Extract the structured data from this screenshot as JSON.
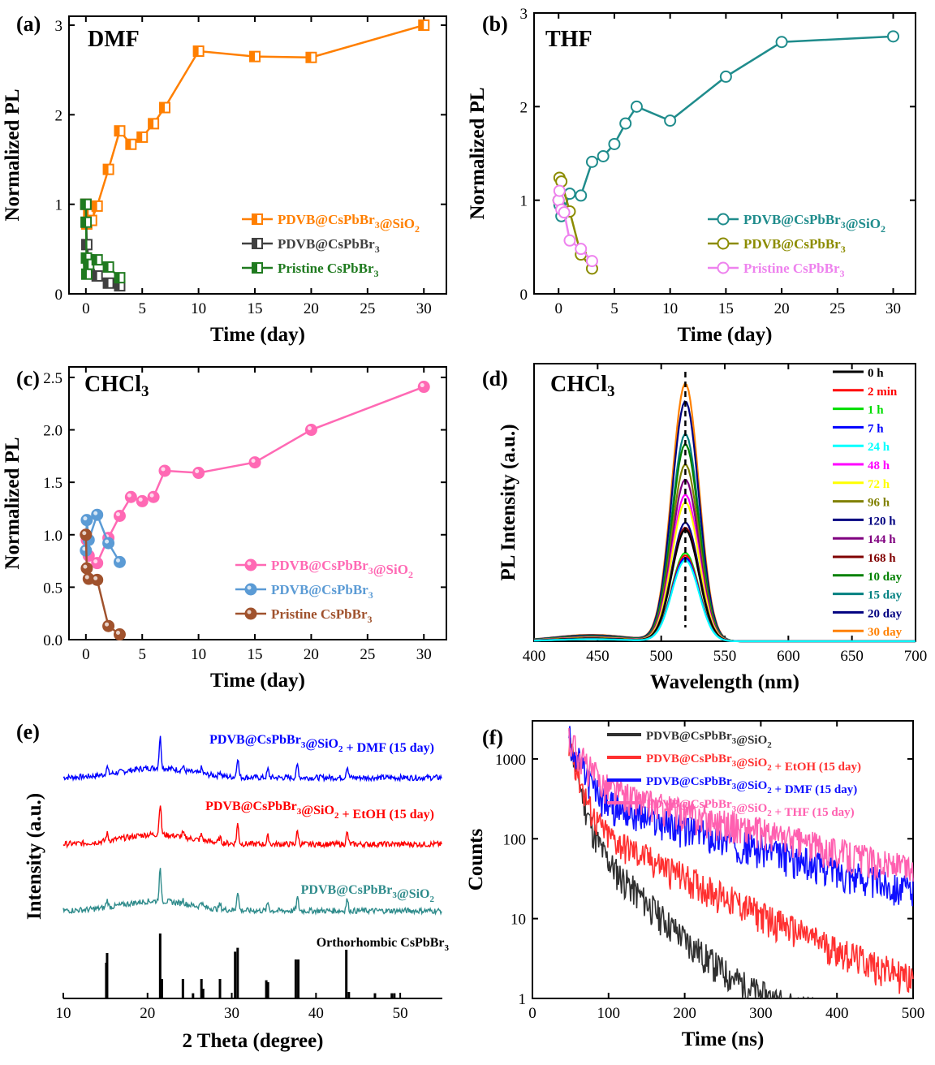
{
  "colors": {
    "orange": "#ff7f00",
    "gray": "#404040",
    "green": "#1f7a1f",
    "teal": "#1f8c8c",
    "olive": "#8c8c00",
    "pink_light": "#ee82ee",
    "pink": "#ff69b4",
    "blue_light": "#5b9bd5",
    "brown": "#a0522d",
    "black": "#000000",
    "red": "#ff0000",
    "blue": "#0000ff",
    "xrd_teal": "#2e8b8b"
  },
  "chart_data": [
    {
      "panel": "(a)",
      "type": "line",
      "title": "DMF",
      "xlabel": "Time (day)",
      "ylabel": "Normalized PL",
      "xlim": [
        -1.5,
        32
      ],
      "ylim": [
        0,
        3.1
      ],
      "xticks": [
        0,
        5,
        10,
        15,
        20,
        25,
        30
      ],
      "xtick_labels": [
        "0",
        "5",
        "10",
        "15",
        "20",
        "25",
        "30"
      ],
      "yticks": [
        0,
        1,
        2,
        3
      ],
      "ytick_labels": [
        "0",
        "1",
        "2",
        "3"
      ],
      "legend_position": "lower-right",
      "marker": "half-square",
      "series": [
        {
          "name": "PDVB@CsPbBr3@SiO2",
          "name_main": "PDVB@CsPbBr",
          "sub1": "3",
          "mid": "@SiO",
          "sub2": "2",
          "color": "#ff7f00",
          "x": [
            0,
            0.08,
            0.25,
            0.5,
            1,
            2,
            3,
            4,
            5,
            6,
            7,
            10,
            15,
            20,
            30
          ],
          "y": [
            1.0,
            0.78,
            0.92,
            0.82,
            0.98,
            1.39,
            1.82,
            1.67,
            1.75,
            1.9,
            2.08,
            2.71,
            2.65,
            2.64,
            3.0
          ]
        },
        {
          "name": "PDVB@CsPbBr3",
          "name_main": "PDVB@CsPbBr",
          "sub1": "3",
          "mid": "",
          "sub2": "",
          "color": "#404040",
          "x": [
            0,
            0.08,
            0.25,
            1,
            2,
            3
          ],
          "y": [
            1.0,
            0.55,
            0.38,
            0.2,
            0.12,
            0.09
          ]
        },
        {
          "name": "Pristine CsPbBr3",
          "name_main": "Pristine CsPbBr",
          "sub1": "3",
          "mid": "",
          "sub2": "",
          "color": "#1f7a1f",
          "x": [
            0,
            0.02,
            0.05,
            0.08,
            0.25,
            1,
            2,
            3
          ],
          "y": [
            1.0,
            0.8,
            0.4,
            0.22,
            0.33,
            0.38,
            0.3,
            0.18
          ]
        }
      ]
    },
    {
      "panel": "(b)",
      "type": "line",
      "title": "THF",
      "xlabel": "Time (day)",
      "ylabel": "Normalized PL",
      "xlim": [
        -2.2,
        32
      ],
      "ylim": [
        0,
        3
      ],
      "xticks": [
        0,
        5,
        10,
        15,
        20,
        25,
        30
      ],
      "xtick_labels": [
        "0",
        "5",
        "10",
        "15",
        "20",
        "25",
        "30"
      ],
      "yticks": [
        0,
        1,
        2,
        3
      ],
      "ytick_labels": [
        "0",
        "1",
        "2",
        "3"
      ],
      "legend_position": "lower-right",
      "marker": "circle",
      "series": [
        {
          "name": "PDVB@CsPbBr3@SiO2",
          "name_main": "PDVB@CsPbBr",
          "sub1": "3",
          "mid": "@SiO",
          "sub2": "2",
          "color": "#1f8c8c",
          "x": [
            0,
            0.08,
            0.25,
            1,
            2,
            3,
            4,
            5,
            6,
            7,
            10,
            15,
            20,
            30
          ],
          "y": [
            1.0,
            0.95,
            0.83,
            1.07,
            1.05,
            1.41,
            1.47,
            1.6,
            1.82,
            2.0,
            1.85,
            2.32,
            2.69,
            2.75
          ]
        },
        {
          "name": "PDVB@CsPbBr3",
          "name_main": "PDVB@CsPbBr",
          "sub1": "3",
          "mid": "",
          "sub2": "",
          "color": "#8c8c00",
          "x": [
            0,
            0.08,
            0.25,
            1,
            2,
            3
          ],
          "y": [
            1.0,
            1.24,
            1.2,
            0.88,
            0.42,
            0.27
          ]
        },
        {
          "name": "Pristine CsPbBr3",
          "name_main": "Pristine CsPbBr",
          "sub1": "3",
          "mid": "",
          "sub2": "",
          "color": "#ee82ee",
          "x": [
            0,
            0.08,
            0.25,
            0.5,
            1,
            2,
            3
          ],
          "y": [
            1.0,
            1.1,
            0.9,
            0.87,
            0.57,
            0.48,
            0.35
          ]
        }
      ]
    },
    {
      "panel": "(c)",
      "type": "line",
      "title": "CHCl3",
      "title_main": "CHCl",
      "title_sub": "3",
      "xlabel": "Time (day)",
      "ylabel": "Normalized PL",
      "xlim": [
        -1.5,
        32
      ],
      "ylim": [
        0,
        2.6
      ],
      "xticks": [
        0,
        5,
        10,
        15,
        20,
        25,
        30
      ],
      "xtick_labels": [
        "0",
        "5",
        "10",
        "15",
        "20",
        "25",
        "30"
      ],
      "yticks": [
        0,
        0.5,
        1.0,
        1.5,
        2.0,
        2.5
      ],
      "ytick_labels": [
        "0.0",
        "0.5",
        "1.0",
        "1.5",
        "2.0",
        "2.5"
      ],
      "legend_position": "lower-right",
      "marker": "ball",
      "series": [
        {
          "name": "PDVB@CsPbBr3@SiO2",
          "name_main": "PDVB@CsPbBr",
          "sub1": "3",
          "mid": "@SiO",
          "sub2": "2",
          "color": "#ff69b4",
          "x": [
            0,
            0.08,
            0.25,
            1,
            2,
            3,
            4,
            5,
            6,
            7,
            10,
            15,
            20,
            30
          ],
          "y": [
            1.0,
            0.95,
            0.8,
            0.73,
            0.97,
            1.18,
            1.36,
            1.32,
            1.36,
            1.61,
            1.59,
            1.69,
            2.0,
            2.41
          ]
        },
        {
          "name": "PDVB@CsPbBr3",
          "name_main": "PDVB@CsPbBr",
          "sub1": "3",
          "mid": "",
          "sub2": "",
          "color": "#5b9bd5",
          "x": [
            0,
            0.08,
            0.25,
            1,
            2,
            3
          ],
          "y": [
            0.85,
            1.14,
            0.95,
            1.19,
            0.92,
            0.74
          ]
        },
        {
          "name": "Pristine CsPbBr3",
          "name_main": "Pristine CsPbBr",
          "sub1": "3",
          "mid": "",
          "sub2": "",
          "color": "#a0522d",
          "x": [
            0,
            0.08,
            0.25,
            1,
            2,
            3
          ],
          "y": [
            1.0,
            0.68,
            0.58,
            0.57,
            0.13,
            0.05
          ]
        }
      ]
    },
    {
      "panel": "(d)",
      "type": "line",
      "title": "CHCl3",
      "title_main": "CHCl",
      "title_sub": "3",
      "xlabel": "Wavelength (nm)",
      "ylabel": "PL Intensity (a.u.)",
      "xlim": [
        400,
        700
      ],
      "ylim": [
        0,
        1.1
      ],
      "xticks": [
        400,
        450,
        500,
        550,
        600,
        650,
        700
      ],
      "xtick_labels": [
        "400",
        "450",
        "500",
        "550",
        "600",
        "650",
        "700"
      ],
      "peak_nm": 519,
      "fwhm_nm": 25,
      "dashed_line_at": 519,
      "legend_position": "right",
      "series": [
        {
          "name": "0 h",
          "color": "#000000",
          "peak": 0.44
        },
        {
          "name": "2 min",
          "color": "#ff0000",
          "peak": 0.34
        },
        {
          "name": "1 h",
          "color": "#00dd00",
          "peak": 0.35
        },
        {
          "name": "7 h",
          "color": "#0000ff",
          "peak": 0.33
        },
        {
          "name": "24 h",
          "color": "#00ffff",
          "peak": 0.32
        },
        {
          "name": "48 h",
          "color": "#ff00ff",
          "peak": 0.58
        },
        {
          "name": "72 h",
          "color": "#ffff00",
          "peak": 0.55
        },
        {
          "name": "96 h",
          "color": "#808000",
          "peak": 0.7
        },
        {
          "name": "120 h",
          "color": "#000080",
          "peak": 0.47
        },
        {
          "name": "144 h",
          "color": "#800080",
          "peak": 0.64
        },
        {
          "name": "168 h",
          "color": "#800000",
          "peak": 0.45
        },
        {
          "name": "10 day",
          "color": "#008000",
          "peak": 0.78
        },
        {
          "name": "15 day",
          "color": "#008080",
          "peak": 0.82
        },
        {
          "name": "20 day",
          "color": "#000080",
          "peak": 0.95
        },
        {
          "name": "30 day",
          "color": "#ff8000",
          "peak": 1.02
        }
      ]
    },
    {
      "panel": "(e)",
      "type": "line",
      "title": "",
      "xlabel": "2 Theta (degree)",
      "ylabel": "Intensity (a.u.)",
      "xlim": [
        10,
        55
      ],
      "xticks": [
        10,
        20,
        30,
        40,
        50
      ],
      "xtick_labels": [
        "10",
        "20",
        "30",
        "40",
        "50"
      ],
      "peaks_deg": [
        15.2,
        21.5,
        24.2,
        26.4,
        28.6,
        30.7,
        34.3,
        37.8,
        43.7
      ],
      "series": [
        {
          "name": "PDVB@CsPbBr3@SiO2 + DMF (15 day)",
          "name_main": "PDVB@CsPbBr",
          "sub1": "3",
          "mid": "@SiO",
          "sub2": "2",
          "tail": " + DMF (15 day)",
          "color": "#0000ff"
        },
        {
          "name": "PDVB@CsPbBr3@SiO2 + EtOH (15 day)",
          "name_main": "PDVB@CsPbBr",
          "sub1": "3",
          "mid": "@SiO",
          "sub2": "2",
          "tail": " + EtOH (15 day)",
          "color": "#ff0000"
        },
        {
          "name": "PDVB@CsPbBr3@SiO2",
          "name_main": "PDVB@CsPbBr",
          "sub1": "3",
          "mid": "@SiO",
          "sub2": "2",
          "tail": "",
          "color": "#2e8b8b"
        }
      ],
      "reference": {
        "name": "Orthorhombic CsPbBr3",
        "name_main": "Orthorhombic CsPbBr",
        "sub": "3",
        "positions": [
          15.1,
          15.2,
          21.5,
          21.7,
          24.2,
          25.4,
          26.4,
          26.6,
          28.6,
          30.4,
          30.7,
          34.1,
          34.3,
          37.6,
          37.9,
          43.6,
          43.9,
          47.0,
          49.0,
          49.3
        ],
        "heights": [
          0.55,
          0.7,
          1.0,
          0.3,
          0.3,
          0.08,
          0.3,
          0.15,
          0.3,
          0.72,
          0.78,
          0.28,
          0.25,
          0.6,
          0.6,
          0.75,
          0.1,
          0.08,
          0.08,
          0.08
        ]
      }
    },
    {
      "panel": "(f)",
      "type": "line",
      "title": "",
      "xlabel": "Time (ns)",
      "ylabel": "Counts",
      "xlim": [
        0,
        500
      ],
      "ylim": [
        1,
        3000
      ],
      "yscale": "log",
      "xticks": [
        0,
        100,
        200,
        300,
        400,
        500
      ],
      "xtick_labels": [
        "0",
        "100",
        "200",
        "300",
        "400",
        "500"
      ],
      "yticks": [
        1,
        10,
        100,
        1000
      ],
      "ytick_labels": [
        "1",
        "10",
        "100",
        "1000"
      ],
      "start_ns": 48,
      "start_counts": 2000,
      "legend_position": "top-right",
      "series": [
        {
          "name": "PDVB@CsPbBr3@SiO2",
          "name_main": "PDVB@CsPbBr",
          "sub1": "3",
          "mid": "@SiO",
          "sub2": "2",
          "tail": "",
          "color": "#303030",
          "a1": 1850,
          "t1": 9,
          "a2": 150,
          "t2": 45
        },
        {
          "name": "PDVB@CsPbBr3@SiO2 + EtOH (15 day)",
          "name_main": "PDVB@CsPbBr",
          "sub1": "3",
          "mid": "@SiO",
          "sub2": "2",
          "tail": " + EtOH (15 day)",
          "color": "#ff3030",
          "a1": 1750,
          "t1": 10,
          "a2": 180,
          "t2": 90
        },
        {
          "name": "PDVB@CsPbBr3@SiO2 + DMF (15 day)",
          "name_main": "PDVB@CsPbBr",
          "sub1": "3",
          "mid": "@SiO",
          "sub2": "2",
          "tail": " + DMF (15 day)",
          "color": "#1010ff",
          "a1": 1650,
          "t1": 14,
          "a2": 340,
          "t2": 165
        },
        {
          "name": "PDVB@CsPbBr3@SiO2 + THF (15 day)",
          "name_main": "PDVB@CsPbBr",
          "sub1": "3",
          "mid": "@SiO",
          "sub2": "2",
          "tail": " + THF (15 day)",
          "color": "#ff60b0",
          "a1": 1500,
          "t1": 18,
          "a2": 500,
          "t2": 180
        }
      ]
    }
  ]
}
